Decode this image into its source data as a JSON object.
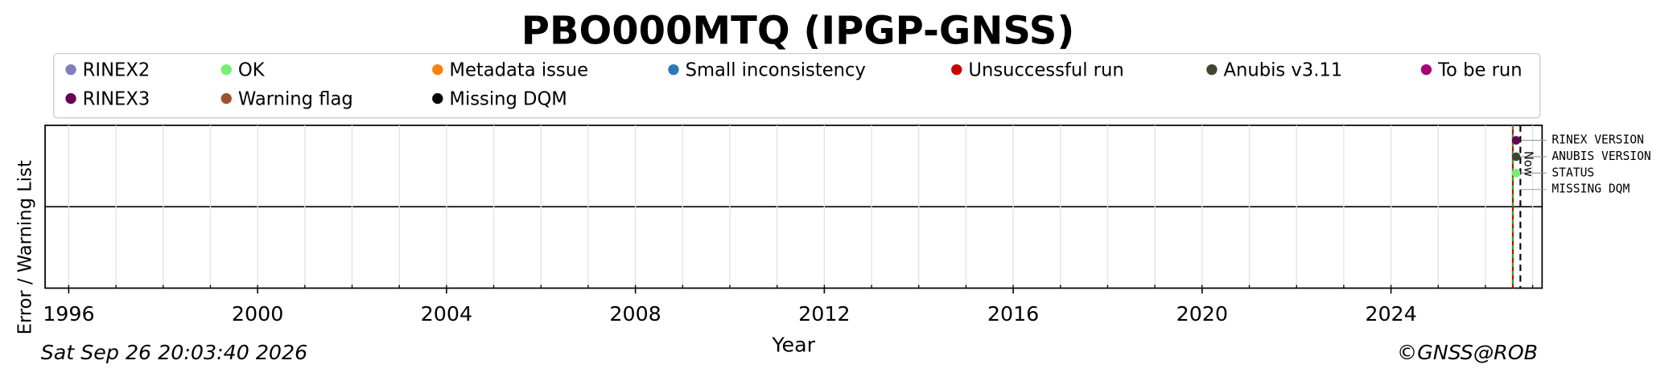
{
  "chart_data": {
    "type": "timeline",
    "title": "PBO000MTQ (IPGP-GNSS)",
    "legend": [
      {
        "name": "RINEX2",
        "color": "#7f7fbf"
      },
      {
        "name": "OK",
        "color": "#77ee77"
      },
      {
        "name": "Metadata issue",
        "color": "#ff7f0e"
      },
      {
        "name": "Small inconsistency",
        "color": "#2a7ab8"
      },
      {
        "name": "Unsuccessful run",
        "color": "#cc0000"
      },
      {
        "name": "Anubis v3.11",
        "color": "#444433"
      },
      {
        "name": "To be run",
        "color": "#aa0077"
      },
      {
        "name": "RINEX3",
        "color": "#660055"
      },
      {
        "name": "Warning flag",
        "color": "#a0522d"
      },
      {
        "name": "Missing DQM",
        "color": "#000000"
      }
    ],
    "ylabel": "Error / Warning List",
    "xlabel": "Year",
    "xlim": [
      1995.5,
      2027.2
    ],
    "xticks": [
      1996,
      2000,
      2004,
      2008,
      2012,
      2016,
      2020,
      2024
    ],
    "xminorticks": [
      1996,
      1997,
      1998,
      1999,
      2000,
      2001,
      2002,
      2003,
      2004,
      2005,
      2006,
      2007,
      2008,
      2009,
      2010,
      2011,
      2012,
      2013,
      2014,
      2015,
      2016,
      2017,
      2018,
      2019,
      2020,
      2021,
      2022,
      2023,
      2024,
      2025,
      2026,
      2027
    ],
    "grid": true,
    "rows": [
      "RINEX VERSION",
      "ANUBIS VERSION",
      "STATUS",
      "MISSING DQM"
    ],
    "points": [
      {
        "x": 2026.65,
        "row": 0,
        "color": "#660055"
      },
      {
        "x": 2026.65,
        "row": 1,
        "color": "#444433"
      },
      {
        "x": 2026.65,
        "row": 2,
        "color": "#77ee77"
      }
    ],
    "start_lines": [
      {
        "x": 2026.58,
        "color": "#cc0000"
      },
      {
        "x": 2026.58,
        "color": "#22aa22"
      }
    ],
    "now": {
      "label": "Now",
      "x": 2026.74
    },
    "timestamp": "Sat Sep 26 20:03:40 2026",
    "copyright": "©GNSS@ROB"
  }
}
